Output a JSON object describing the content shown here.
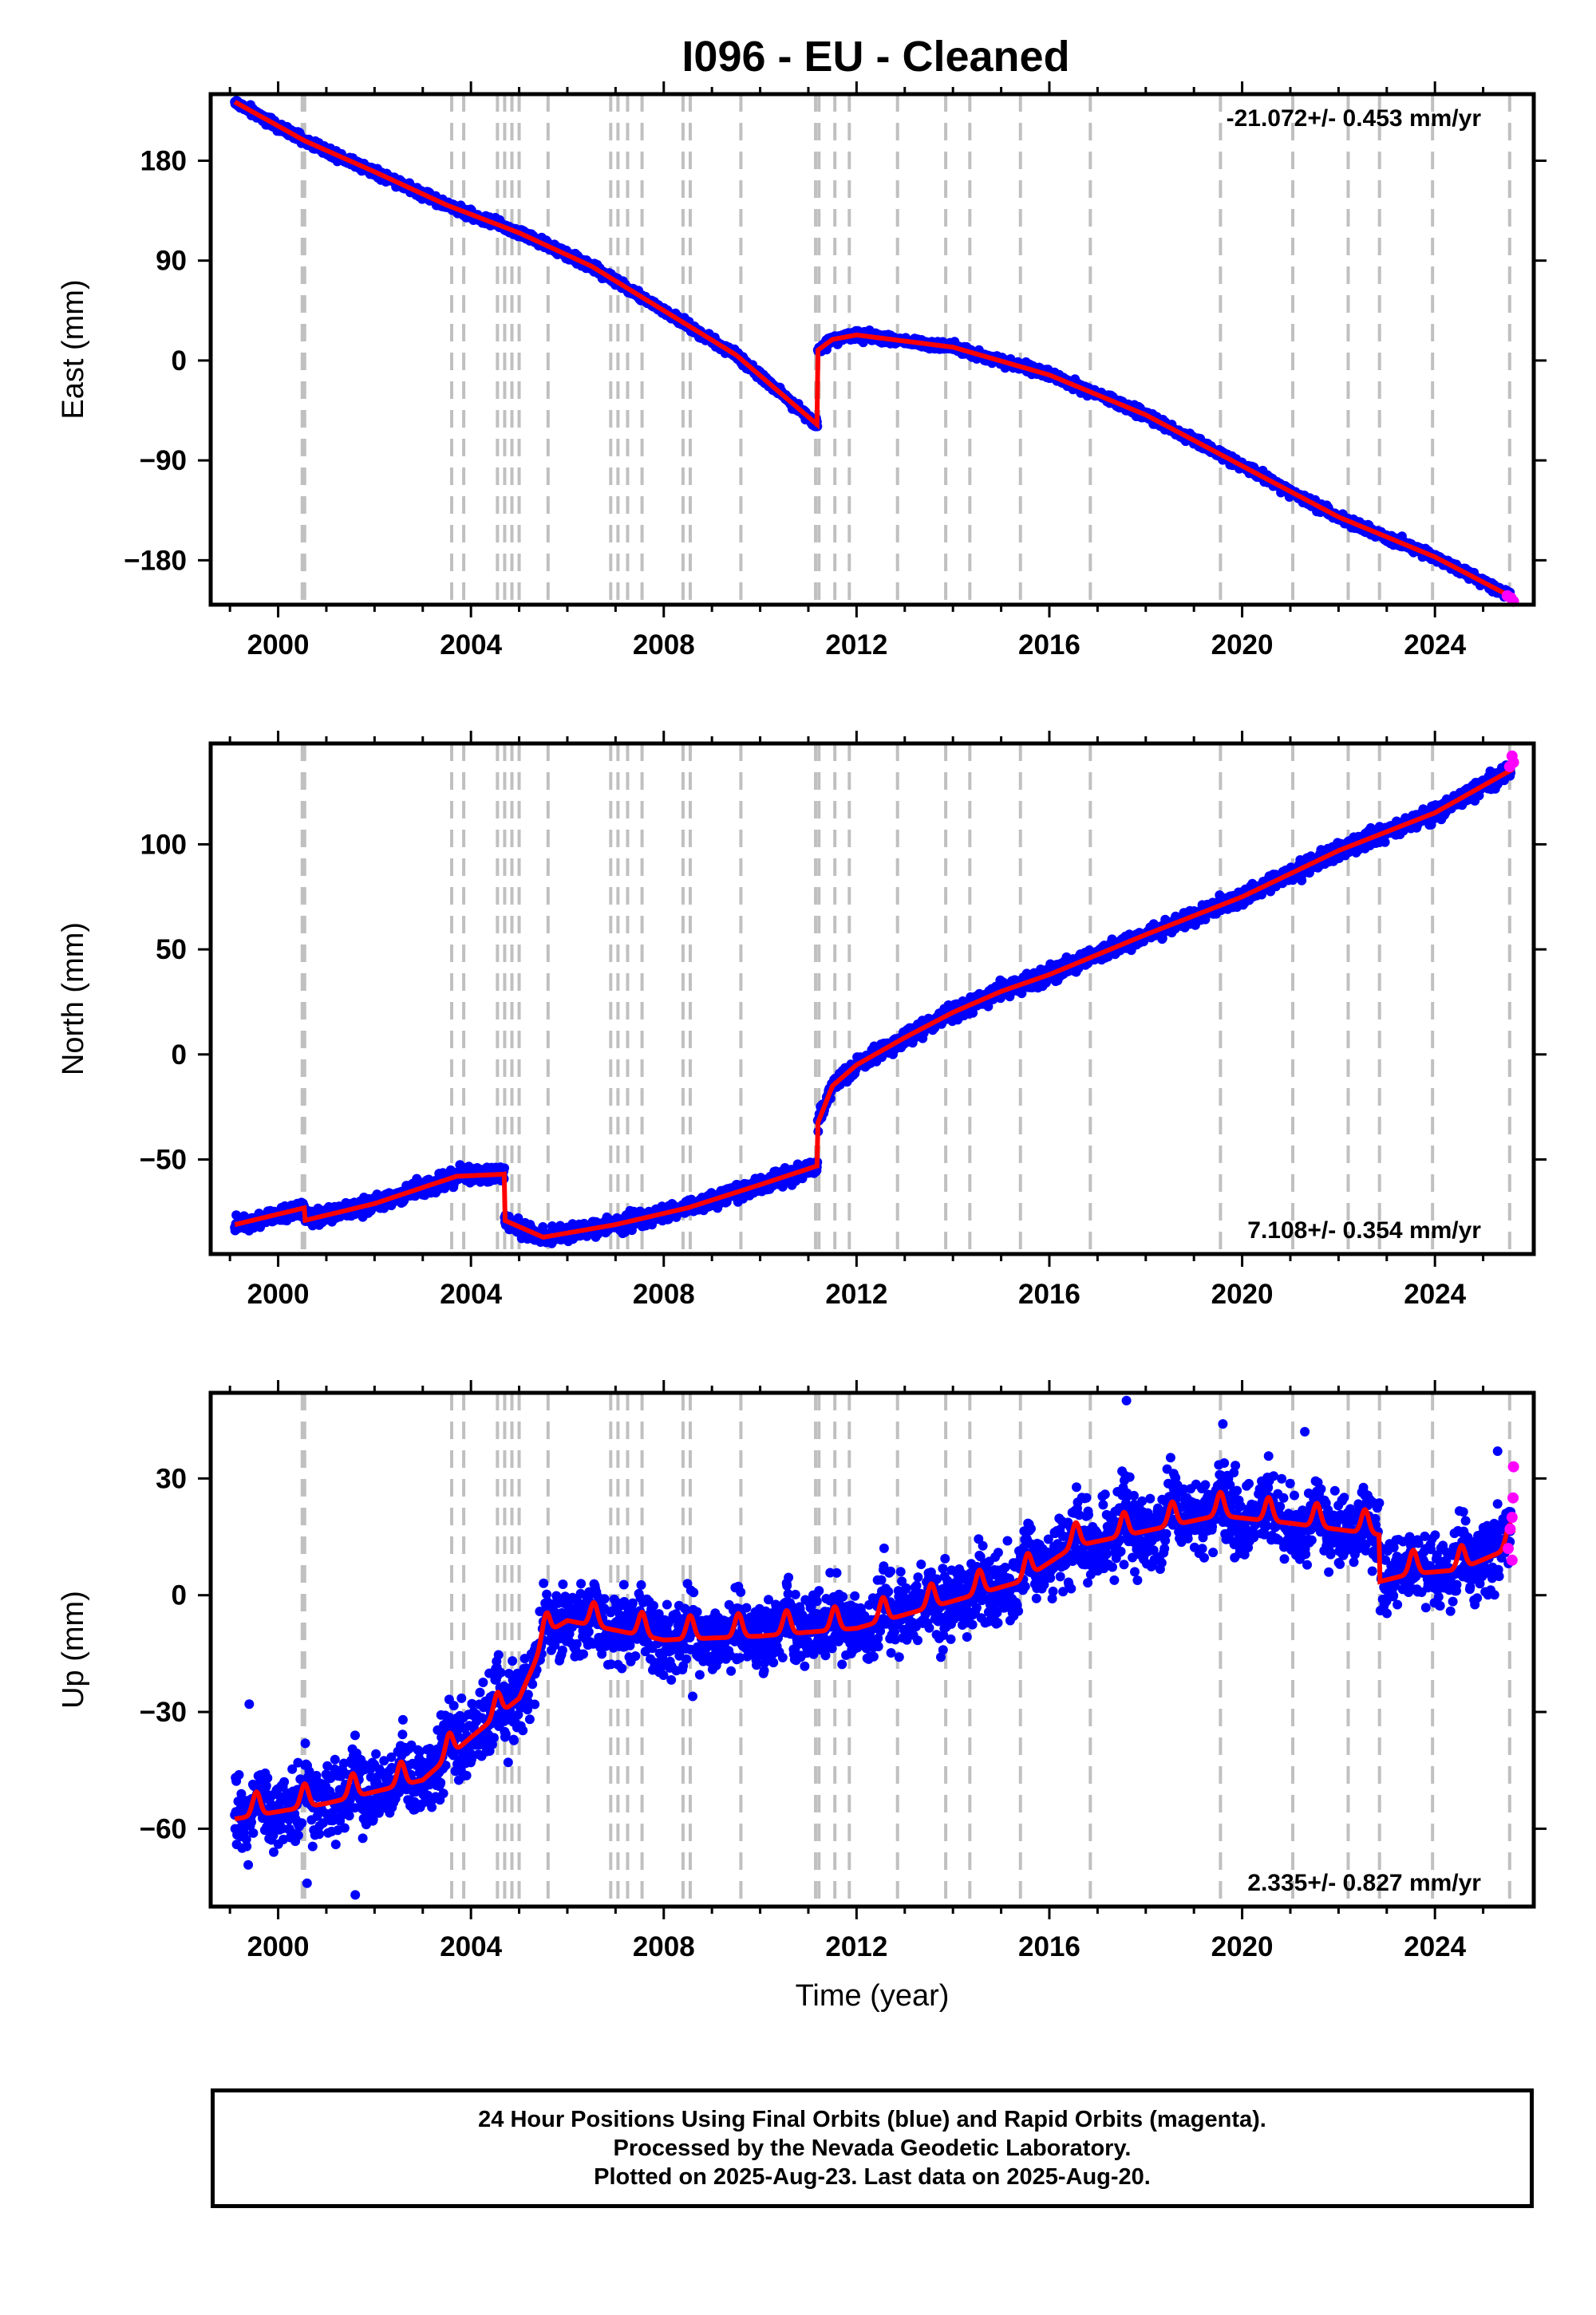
{
  "title": "I096  - EU - Cleaned",
  "caption": {
    "line1": "24 Hour Positions Using Final Orbits (blue) and Rapid Orbits (magenta).",
    "line2": "Processed by the Nevada Geodetic Laboratory.",
    "line3": "Plotted on 2025-Aug-23. Last data on 2025-Aug-20."
  },
  "colors": {
    "final_orbits": "#0000ff",
    "rapid_orbits": "#ff00ff",
    "model": "#ff0000",
    "event_lines": "#c0c0c0",
    "frame": "#000000"
  },
  "chart_data": [
    {
      "type": "scatter",
      "component": "east",
      "ylabel": "East (mm)",
      "xlabel": "",
      "xlim": [
        1998.6,
        2026.05
      ],
      "ylim": [
        -220,
        240
      ],
      "xticks": [
        2000,
        2004,
        2008,
        2012,
        2016,
        2020,
        2024
      ],
      "yticks": [
        -180,
        -90,
        0,
        90,
        180
      ],
      "ytick_labels": [
        "−180",
        "−90",
        "0",
        "90",
        "180"
      ],
      "rate_label": "-21.072+/- 0.453 mm/yr",
      "rate_label_position": "top-right",
      "grid": false,
      "offsets": [
        {
          "x": 2011.19,
          "dy": 67
        }
      ],
      "model": [
        [
          1999.1,
          233
        ],
        [
          2000.55,
          198
        ],
        [
          2002.0,
          170
        ],
        [
          2003.5,
          140
        ],
        [
          2005.0,
          115
        ],
        [
          2006.5,
          85
        ],
        [
          2008.0,
          45
        ],
        [
          2009.5,
          5
        ],
        [
          2011.19,
          -58
        ],
        [
          2011.19,
          9
        ],
        [
          2011.5,
          19
        ],
        [
          2012.0,
          23
        ],
        [
          2014.0,
          12
        ],
        [
          2016.0,
          -13
        ],
        [
          2018.0,
          -49
        ],
        [
          2020.0,
          -95
        ],
        [
          2022.0,
          -141
        ],
        [
          2024.0,
          -177
        ],
        [
          2025.63,
          -214
        ]
      ],
      "rapid": [
        [
          2025.5,
          -212
        ],
        [
          2025.58,
          -214
        ],
        [
          2025.63,
          -217
        ]
      ],
      "noise_mm": 2.8
    },
    {
      "type": "scatter",
      "component": "north",
      "ylabel": "North (mm)",
      "xlabel": "",
      "xlim": [
        1998.6,
        2026.05
      ],
      "ylim": [
        -95,
        148
      ],
      "xticks": [
        2000,
        2004,
        2008,
        2012,
        2016,
        2020,
        2024
      ],
      "yticks": [
        -50,
        0,
        50,
        100
      ],
      "ytick_labels": [
        "−50",
        "0",
        "50",
        "100"
      ],
      "rate_label": "7.108+/- 0.354 mm/yr",
      "rate_label_position": "bottom-right",
      "grid": false,
      "offsets": [
        {
          "x": 2000.55,
          "dy": -6
        },
        {
          "x": 2004.7,
          "dy": -22
        },
        {
          "x": 2011.19,
          "dy": 20
        }
      ],
      "model": [
        [
          1999.1,
          -81
        ],
        [
          2000.55,
          -73
        ],
        [
          2000.55,
          -79
        ],
        [
          2002.0,
          -71
        ],
        [
          2003.7,
          -58
        ],
        [
          2004.7,
          -57
        ],
        [
          2004.7,
          -79
        ],
        [
          2005.5,
          -87
        ],
        [
          2007.0,
          -81
        ],
        [
          2008.5,
          -73
        ],
        [
          2010.0,
          -62
        ],
        [
          2011.19,
          -53
        ],
        [
          2011.19,
          -33
        ],
        [
          2011.5,
          -15
        ],
        [
          2012.0,
          -5
        ],
        [
          2013.0,
          8
        ],
        [
          2014.0,
          20
        ],
        [
          2015.0,
          30
        ],
        [
          2016.0,
          38
        ],
        [
          2018.0,
          57
        ],
        [
          2020.0,
          75
        ],
        [
          2022.0,
          97
        ],
        [
          2024.0,
          115
        ],
        [
          2025.63,
          136
        ]
      ],
      "rapid": [
        [
          2025.55,
          137
        ],
        [
          2025.6,
          142
        ],
        [
          2025.63,
          139
        ]
      ],
      "noise_mm": 2.6
    },
    {
      "type": "scatter",
      "component": "up",
      "ylabel": "Up (mm)",
      "xlabel": "Time (year)",
      "xlim": [
        1998.6,
        2026.05
      ],
      "ylim": [
        -80,
        52
      ],
      "xticks": [
        2000,
        2004,
        2008,
        2012,
        2016,
        2020,
        2024
      ],
      "yticks": [
        -60,
        -30,
        0,
        30
      ],
      "ytick_labels": [
        "−60",
        "−30",
        "0",
        "30"
      ],
      "rate_label": "2.335+/- 0.827 mm/yr",
      "rate_label_position": "bottom-right",
      "grid": false,
      "offsets": [
        {
          "x": 2003.7,
          "dy": 5
        },
        {
          "x": 2005.6,
          "dy": 8
        },
        {
          "x": 2015.4,
          "dy": 6
        },
        {
          "x": 2022.85,
          "dy": -10
        }
      ],
      "model": [
        [
          1999.1,
          -56
        ],
        [
          2001.0,
          -52
        ],
        [
          2003.0,
          -46
        ],
        [
          2004.0,
          -35
        ],
        [
          2005.0,
          -25
        ],
        [
          2005.6,
          -8
        ],
        [
          2006.0,
          -5
        ],
        [
          2008.0,
          -10
        ],
        [
          2010.0,
          -9
        ],
        [
          2012.0,
          -7
        ],
        [
          2014.0,
          0
        ],
        [
          2015.4,
          5
        ],
        [
          2016.5,
          14
        ],
        [
          2018.0,
          18
        ],
        [
          2019.5,
          22
        ],
        [
          2021.0,
          20
        ],
        [
          2022.85,
          17
        ],
        [
          2022.85,
          5
        ],
        [
          2023.5,
          7
        ],
        [
          2024.5,
          8
        ],
        [
          2025.63,
          14
        ]
      ],
      "seasonal_mm": 6,
      "rapid": [
        [
          2025.52,
          12
        ],
        [
          2025.56,
          17
        ],
        [
          2025.6,
          20
        ],
        [
          2025.62,
          25
        ],
        [
          2025.63,
          33
        ],
        [
          2025.6,
          9
        ]
      ],
      "outliers": [
        [
          2017.6,
          50
        ],
        [
          2019.6,
          44
        ],
        [
          2021.3,
          42
        ],
        [
          2025.3,
          37
        ],
        [
          2001.6,
          -77
        ],
        [
          2000.6,
          -74
        ],
        [
          1999.4,
          -28
        ],
        [
          2008.6,
          -26
        ]
      ],
      "noise_mm": 6.5
    }
  ],
  "event_lines": [
    2000.5,
    2000.55,
    2003.6,
    2003.85,
    2004.55,
    2004.7,
    2004.85,
    2005.0,
    2005.6,
    2006.9,
    2007.05,
    2007.25,
    2007.55,
    2008.4,
    2008.55,
    2009.6,
    2011.15,
    2011.22,
    2011.55,
    2011.85,
    2012.85,
    2013.85,
    2014.35,
    2015.4,
    2016.85,
    2019.55,
    2021.05,
    2022.2,
    2022.85,
    2023.95,
    2025.55
  ]
}
